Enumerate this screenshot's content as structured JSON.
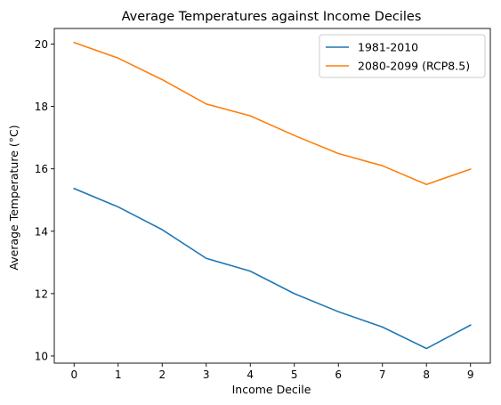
{
  "chart_data": {
    "type": "line",
    "title": "Average Temperatures against Income Deciles",
    "xlabel": "Income Decile",
    "ylabel": "Average Temperature (°C)",
    "x": [
      0,
      1,
      2,
      3,
      4,
      5,
      6,
      7,
      8,
      9
    ],
    "xticks": [
      "0",
      "1",
      "2",
      "3",
      "4",
      "5",
      "6",
      "7",
      "8",
      "9"
    ],
    "yticks": [
      "10",
      "12",
      "14",
      "16",
      "18",
      "20"
    ],
    "xlim": [
      -0.45,
      9.45
    ],
    "ylim": [
      9.77,
      20.5
    ],
    "grid": false,
    "legend_position": "top-right",
    "series": [
      {
        "name": "1981-2010",
        "color": "#1f77b4",
        "values": [
          15.37,
          14.78,
          14.05,
          13.13,
          12.72,
          12.0,
          11.42,
          10.93,
          10.24,
          10.99
        ]
      },
      {
        "name": "2080-2099 (RCP8.5)",
        "color": "#ff7f0e",
        "values": [
          20.05,
          19.55,
          18.86,
          18.08,
          17.7,
          17.07,
          16.49,
          16.1,
          15.5,
          15.99
        ]
      }
    ]
  }
}
